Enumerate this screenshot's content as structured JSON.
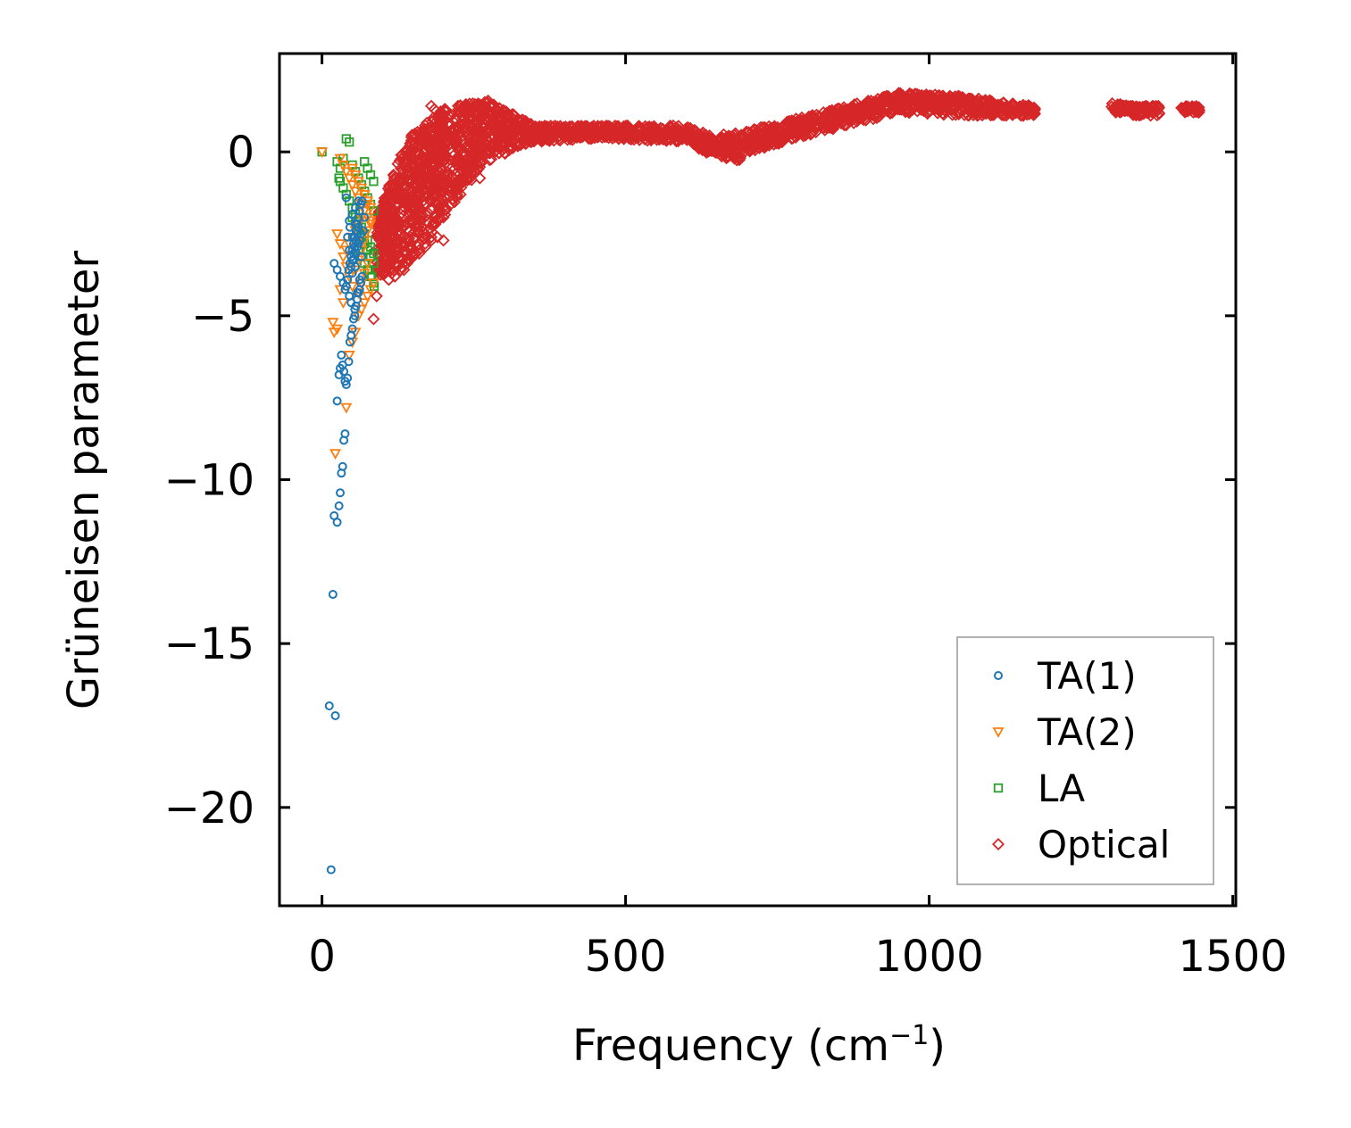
{
  "chart_data": {
    "type": "scatter",
    "title": "",
    "xlabel": "Frequency (cm",
    "xlabel_sup": "−1",
    "xlabel_suffix": ")",
    "ylabel": "Grüneisen parameter",
    "xlim": [
      -70,
      1505
    ],
    "ylim": [
      -23,
      3
    ],
    "xticks": [
      0,
      500,
      1000,
      1500
    ],
    "xtick_labels": [
      "0",
      "500",
      "1000",
      "1500"
    ],
    "yticks": [
      0,
      -5,
      -10,
      -15,
      -20
    ],
    "ytick_labels": [
      "0",
      "−5",
      "−10",
      "−15",
      "−20"
    ],
    "grid": false,
    "legend_position": "bottom-right",
    "colors": {
      "ta1": "#1f77b4",
      "ta2": "#ff7f0e",
      "la": "#2ca02c",
      "optical": "#d62728"
    },
    "series": [
      {
        "name": "TA(1)",
        "marker": "circle",
        "color": "#1f77b4",
        "x": [
          15,
          22,
          12,
          18,
          20,
          25,
          28,
          30,
          32,
          34,
          36,
          38,
          25,
          28,
          30,
          32,
          34,
          36,
          38,
          40,
          42,
          44,
          46,
          48,
          50,
          52,
          54,
          56,
          58,
          60,
          62,
          64,
          66,
          40,
          42,
          44,
          46,
          48,
          50,
          52,
          54,
          56,
          58,
          60,
          62,
          64,
          66,
          50,
          52,
          54,
          56,
          58,
          60,
          45,
          48,
          50,
          55,
          40,
          20,
          25,
          30,
          35,
          38,
          45,
          50,
          55,
          60,
          65,
          68,
          70,
          48,
          52,
          56,
          58,
          62,
          64,
          54,
          58,
          62,
          45,
          50,
          55,
          60,
          42,
          46
        ],
        "y": [
          -21.9,
          -17.2,
          -16.9,
          -13.5,
          -11.1,
          -11.3,
          -10.8,
          -10.4,
          -9.8,
          -9.6,
          -8.8,
          -8.6,
          -7.6,
          -6.8,
          -6.6,
          -6.2,
          -6.5,
          -6.7,
          -7.0,
          -7.1,
          -6.9,
          -6.4,
          -5.8,
          -5.6,
          -5.4,
          -5.1,
          -5.0,
          -4.7,
          -4.5,
          -4.3,
          -4.2,
          -4.0,
          -3.8,
          -4.1,
          -3.9,
          -3.6,
          -3.4,
          -3.2,
          -3.0,
          -2.8,
          -2.6,
          -2.4,
          -2.2,
          -2.0,
          -1.8,
          -1.6,
          -1.5,
          -3.3,
          -3.1,
          -2.9,
          -2.7,
          -2.5,
          -2.3,
          -4.4,
          -4.6,
          -3.7,
          -3.5,
          -1.4,
          -3.4,
          -3.6,
          -3.8,
          -4.0,
          -4.2,
          -3.0,
          -2.6,
          -2.2,
          -2.8,
          -3.2,
          -2.4,
          -2.0,
          -3.5,
          -3.3,
          -3.1,
          -2.9,
          -2.7,
          -2.5,
          -4.8,
          -4.3,
          -3.9,
          -2.1,
          -1.9,
          -1.7,
          -1.5,
          -2.6,
          -2.3
        ]
      },
      {
        "name": "TA(2)",
        "marker": "triangle-down",
        "color": "#ff7f0e",
        "x": [
          0,
          18,
          20,
          22,
          25,
          30,
          35,
          40,
          45,
          50,
          55,
          60,
          65,
          70,
          75,
          80,
          85,
          30,
          35,
          40,
          45,
          50,
          55,
          60,
          65,
          70,
          75,
          80,
          40,
          45,
          50,
          55,
          60,
          65,
          70,
          75,
          25,
          30,
          35,
          40,
          45,
          50,
          55,
          60,
          65,
          70,
          75,
          80,
          50,
          55,
          60,
          65,
          70,
          75,
          80,
          60,
          65,
          70,
          75
        ],
        "y": [
          0,
          -5.2,
          -5.5,
          -9.2,
          -5.4,
          -4.2,
          -4.6,
          -7.8,
          -6.2,
          -5.8,
          -5.5,
          -5.0,
          -4.8,
          -4.6,
          -4.4,
          -4.2,
          -4.0,
          -0.2,
          -0.4,
          -0.6,
          -0.8,
          -1.0,
          -1.2,
          -1.4,
          -1.6,
          -1.8,
          -2.0,
          -2.2,
          -3.0,
          -2.8,
          -2.6,
          -2.4,
          -2.2,
          -2.0,
          -1.8,
          -1.6,
          -2.5,
          -2.8,
          -3.2,
          -3.5,
          -3.8,
          -4.1,
          -3.6,
          -3.3,
          -3.0,
          -2.7,
          -2.4,
          -2.1,
          -0.5,
          -0.7,
          -0.9,
          -1.1,
          -1.3,
          -1.5,
          -1.7,
          -4.3,
          -4.0,
          -3.7,
          -3.4
        ]
      },
      {
        "name": "LA",
        "marker": "square",
        "color": "#2ca02c",
        "x": [
          0,
          25,
          28,
          30,
          35,
          40,
          45,
          50,
          55,
          60,
          65,
          70,
          75,
          80,
          85,
          30,
          35,
          40,
          45,
          50,
          55,
          60,
          65,
          70,
          75,
          80,
          85,
          60,
          65,
          70,
          75,
          80,
          85,
          70,
          75,
          80,
          85,
          50,
          55,
          60,
          65,
          70,
          75,
          80,
          85,
          78,
          82,
          86
        ],
        "y": [
          0,
          -0.3,
          -0.8,
          -0.5,
          -0.2,
          0.4,
          0.3,
          -0.4,
          -0.6,
          -0.8,
          -1.0,
          -1.2,
          -1.4,
          -1.6,
          -1.8,
          -0.9,
          -1.1,
          -1.3,
          -1.5,
          -1.7,
          -1.9,
          -2.1,
          -2.3,
          -2.5,
          -2.7,
          -2.9,
          -3.1,
          -3.0,
          -3.2,
          -3.4,
          -3.6,
          -3.8,
          -4.0,
          -0.3,
          -0.5,
          -0.7,
          -0.9,
          -2.0,
          -2.2,
          -2.4,
          -2.6,
          -2.8,
          -3.0,
          -3.2,
          -3.4,
          -3.6,
          -3.8,
          -4.1
        ]
      },
      {
        "name": "Optical",
        "marker": "diamond",
        "color": "#d62728",
        "generator": "band",
        "regions": [
          {
            "x": [
              90,
              140
            ],
            "ymin": [
              -3.8,
              -3.5
            ],
            "ymax": [
              -2.0,
              0.4
            ],
            "n": 260
          },
          {
            "x": [
              140,
              200
            ],
            "ymin": [
              -3.5,
              -2.0
            ],
            "ymax": [
              0.4,
              1.3
            ],
            "n": 360
          },
          {
            "x": [
              200,
              270
            ],
            "ymin": [
              -2.0,
              -0.3
            ],
            "ymax": [
              1.3,
              1.6
            ],
            "n": 300
          },
          {
            "x": [
              270,
              350
            ],
            "ymin": [
              -0.3,
              0.3
            ],
            "ymax": [
              1.6,
              0.8
            ],
            "n": 220
          },
          {
            "x": [
              350,
              450
            ],
            "ymin": [
              0.3,
              0.4
            ],
            "ymax": [
              0.8,
              0.8
            ],
            "n": 180
          },
          {
            "x": [
              450,
              600
            ],
            "ymin": [
              0.4,
              0.3
            ],
            "ymax": [
              0.8,
              0.8
            ],
            "n": 220
          },
          {
            "x": [
              600,
              640
            ],
            "ymin": [
              0.3,
              -0.1
            ],
            "ymax": [
              0.8,
              0.5
            ],
            "n": 80
          },
          {
            "x": [
              640,
              690
            ],
            "ymin": [
              -0.1,
              -0.3
            ],
            "ymax": [
              0.5,
              0.6
            ],
            "n": 100
          },
          {
            "x": [
              690,
              800
            ],
            "ymin": [
              -0.1,
              0.5
            ],
            "ymax": [
              0.6,
              1.1
            ],
            "n": 200
          },
          {
            "x": [
              800,
              950
            ],
            "ymin": [
              0.5,
              1.2
            ],
            "ymax": [
              1.1,
              1.8
            ],
            "n": 260
          },
          {
            "x": [
              950,
              1050
            ],
            "ymin": [
              1.2,
              1.1
            ],
            "ymax": [
              1.8,
              1.7
            ],
            "n": 200
          },
          {
            "x": [
              1050,
              1175
            ],
            "ymin": [
              1.1,
              1.1
            ],
            "ymax": [
              1.7,
              1.4
            ],
            "n": 180
          },
          {
            "x": [
              1300,
              1335
            ],
            "ymin": [
              1.2,
              1.2
            ],
            "ymax": [
              1.5,
              1.4
            ],
            "n": 50
          },
          {
            "x": [
              1335,
              1380
            ],
            "ymin": [
              1.1,
              1.1
            ],
            "ymax": [
              1.4,
              1.4
            ],
            "n": 60
          },
          {
            "x": [
              1415,
              1445
            ],
            "ymin": [
              1.2,
              1.2
            ],
            "ymax": [
              1.4,
              1.4
            ],
            "n": 40
          }
        ],
        "x": [
          85,
          90,
          95,
          100,
          105,
          110,
          115,
          120,
          125,
          130,
          135,
          140,
          145,
          150,
          160,
          170,
          180,
          190,
          200,
          220,
          260,
          120,
          130,
          140,
          150,
          160,
          170,
          180,
          180,
          185
        ],
        "y": [
          -5.1,
          -4.4,
          -3.6,
          -3.4,
          -3.2,
          -3.9,
          -3.7,
          -3.8,
          -3.5,
          -3.3,
          -3.6,
          -3.4,
          -3.0,
          -3.2,
          -3.1,
          -2.9,
          -2.7,
          -2.6,
          -2.7,
          -1.0,
          -0.8,
          -3.8,
          -3.6,
          -3.4,
          -3.2,
          -3.0,
          -2.8,
          -2.6,
          1.4,
          1.3
        ]
      }
    ]
  }
}
